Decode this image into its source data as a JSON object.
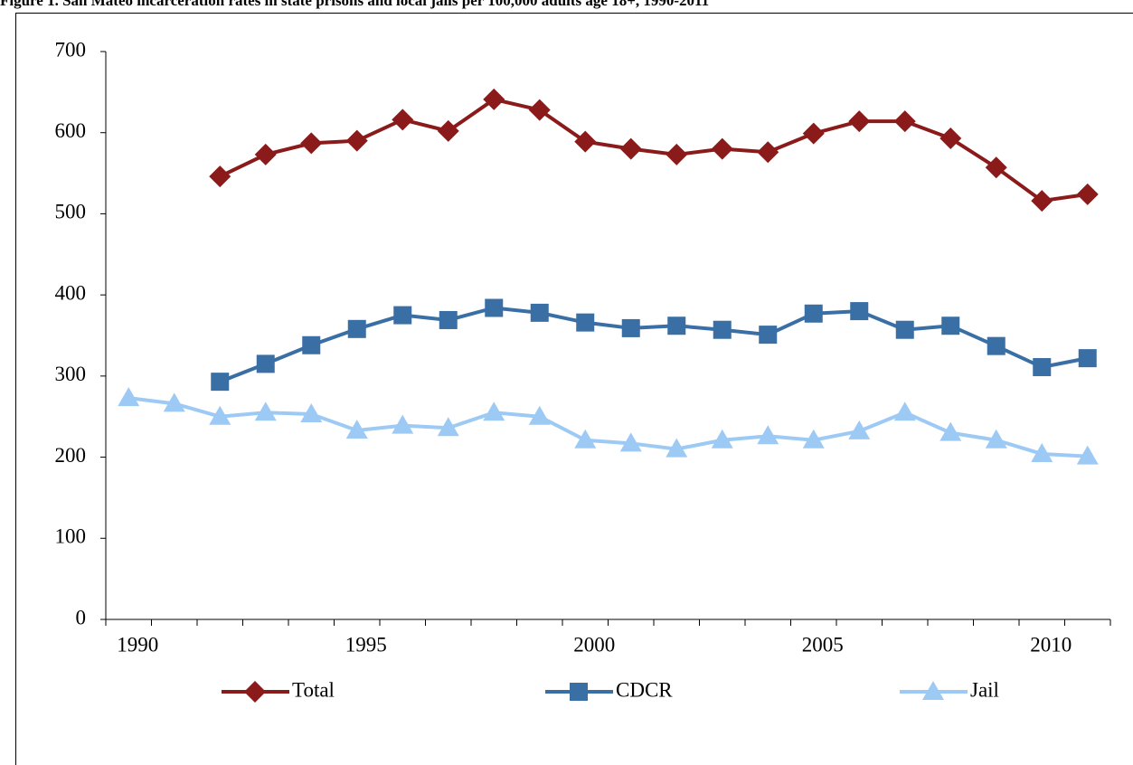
{
  "chart_data": {
    "type": "line",
    "title": "Figure 1. San Mateo incarceration rates in state prisons and local jails per 100,000 adults age 18+, 1990-2011",
    "categories": [
      "1990",
      null,
      null,
      null,
      null,
      "1995",
      null,
      null,
      null,
      null,
      "2000",
      null,
      null,
      null,
      null,
      "2005",
      null,
      null,
      null,
      null,
      "2010",
      null
    ],
    "ylim": [
      0,
      700
    ],
    "yticks": [
      0,
      100,
      200,
      300,
      400,
      500,
      600,
      700
    ],
    "grid": false,
    "legend": "bottom",
    "series": [
      {
        "name": "Total",
        "color": "#8b1a1a",
        "marker": "diamond",
        "values": [
          null,
          null,
          546,
          573,
          587,
          590,
          616,
          602,
          641,
          628,
          589,
          580,
          573,
          580,
          576,
          599,
          614,
          614,
          593,
          557,
          516,
          524
        ]
      },
      {
        "name": "CDCR",
        "color": "#3a6fa6",
        "marker": "square",
        "values": [
          null,
          null,
          293,
          315,
          338,
          358,
          375,
          369,
          384,
          378,
          366,
          359,
          362,
          357,
          351,
          377,
          380,
          357,
          362,
          337,
          311,
          322
        ]
      },
      {
        "name": "Jail",
        "color": "#9dcaf5",
        "marker": "triangle",
        "values": [
          273,
          266,
          250,
          255,
          253,
          233,
          239,
          236,
          255,
          250,
          221,
          217,
          210,
          221,
          226,
          221,
          232,
          255,
          230,
          221,
          204,
          201
        ]
      }
    ]
  }
}
